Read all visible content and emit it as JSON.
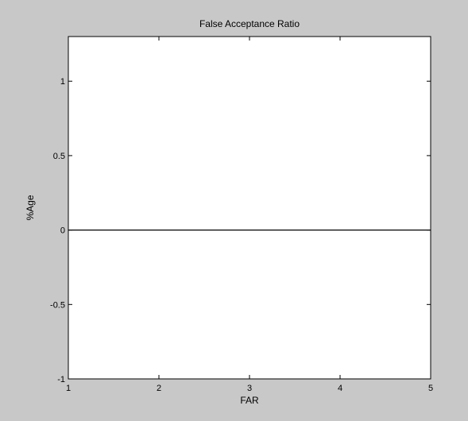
{
  "chart_data": {
    "type": "line",
    "title": "False Acceptance Ratio",
    "xlabel": "FAR",
    "ylabel": "%Age",
    "xlim": [
      1,
      5
    ],
    "ylim": [
      -1,
      1.3
    ],
    "xticks": [
      1,
      2,
      3,
      4,
      5
    ],
    "xtick_labels": [
      "1",
      "2",
      "3",
      "4",
      "5"
    ],
    "yticks": [
      -1,
      -0.5,
      0,
      0.5,
      1
    ],
    "ytick_labels": [
      "-1",
      "-0.5",
      "0",
      "0.5",
      "1"
    ],
    "grid": false,
    "series": [
      {
        "x": [
          1,
          2,
          3,
          4,
          5
        ],
        "y": [
          0,
          0,
          0,
          0,
          0
        ],
        "color": "#000000"
      }
    ]
  },
  "colors": {
    "figure_background": "#c8c8c8",
    "axes_background": "#ffffff",
    "axis_color": "#000000"
  }
}
